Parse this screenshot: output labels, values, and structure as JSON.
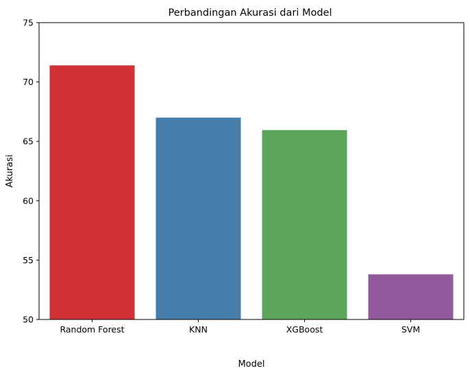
{
  "chart_data": {
    "type": "bar",
    "title": "Perbandingan Akurasi dari Model",
    "xlabel": "Model",
    "ylabel": "Akurasi",
    "categories": [
      "Random Forest",
      "KNN",
      "XGBoost",
      "SVM"
    ],
    "values": [
      71.4,
      67.0,
      65.95,
      53.8
    ],
    "colors": [
      "#d03236",
      "#467eab",
      "#5aa55a",
      "#915a9c"
    ],
    "ylim": [
      50,
      75
    ],
    "yticks": [
      50,
      55,
      60,
      65,
      70,
      75
    ],
    "grid": false,
    "legend": "none"
  }
}
